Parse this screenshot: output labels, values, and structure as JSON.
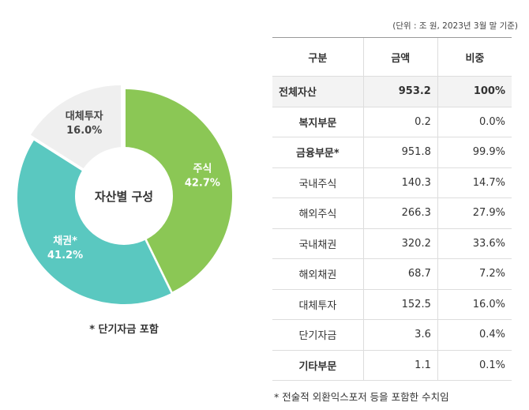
{
  "chart_data": {
    "type": "pie",
    "title": "자산별 구성",
    "slices": [
      {
        "label": "주식",
        "value": 42.7,
        "display": "42.7%",
        "color": "#8bc755",
        "text_color": "#ffffff"
      },
      {
        "label": "채권*",
        "value": 41.2,
        "display": "41.2%",
        "color": "#5ac8c0",
        "text_color": "#ffffff"
      },
      {
        "label": "대체투자",
        "value": 16.0,
        "display": "16.0%",
        "color": "#efefef",
        "text_color": "#444444"
      }
    ],
    "note": "* 단기자금 포함"
  },
  "table": {
    "unit": "(단위 : 조 원, 2023년 3월 말 기준)",
    "headers": [
      "구분",
      "금액",
      "비중"
    ],
    "rows": [
      [
        "전체자산",
        "953.2",
        "100%"
      ],
      [
        "복지부문",
        "0.2",
        "0.0%"
      ],
      [
        "금융부문*",
        "951.8",
        "99.9%"
      ],
      [
        "국내주식",
        "140.3",
        "14.7%"
      ],
      [
        "해외주식",
        "266.3",
        "27.9%"
      ],
      [
        "국내채권",
        "320.2",
        "33.6%"
      ],
      [
        "해외채권",
        "68.7",
        "7.2%"
      ],
      [
        "대체투자",
        "152.5",
        "16.0%"
      ],
      [
        "단기자금",
        "3.6",
        "0.4%"
      ],
      [
        "기타부문",
        "1.1",
        "0.1%"
      ]
    ],
    "footnote": "* 전술적 외환익스포저 등을 포함한 수치임"
  }
}
